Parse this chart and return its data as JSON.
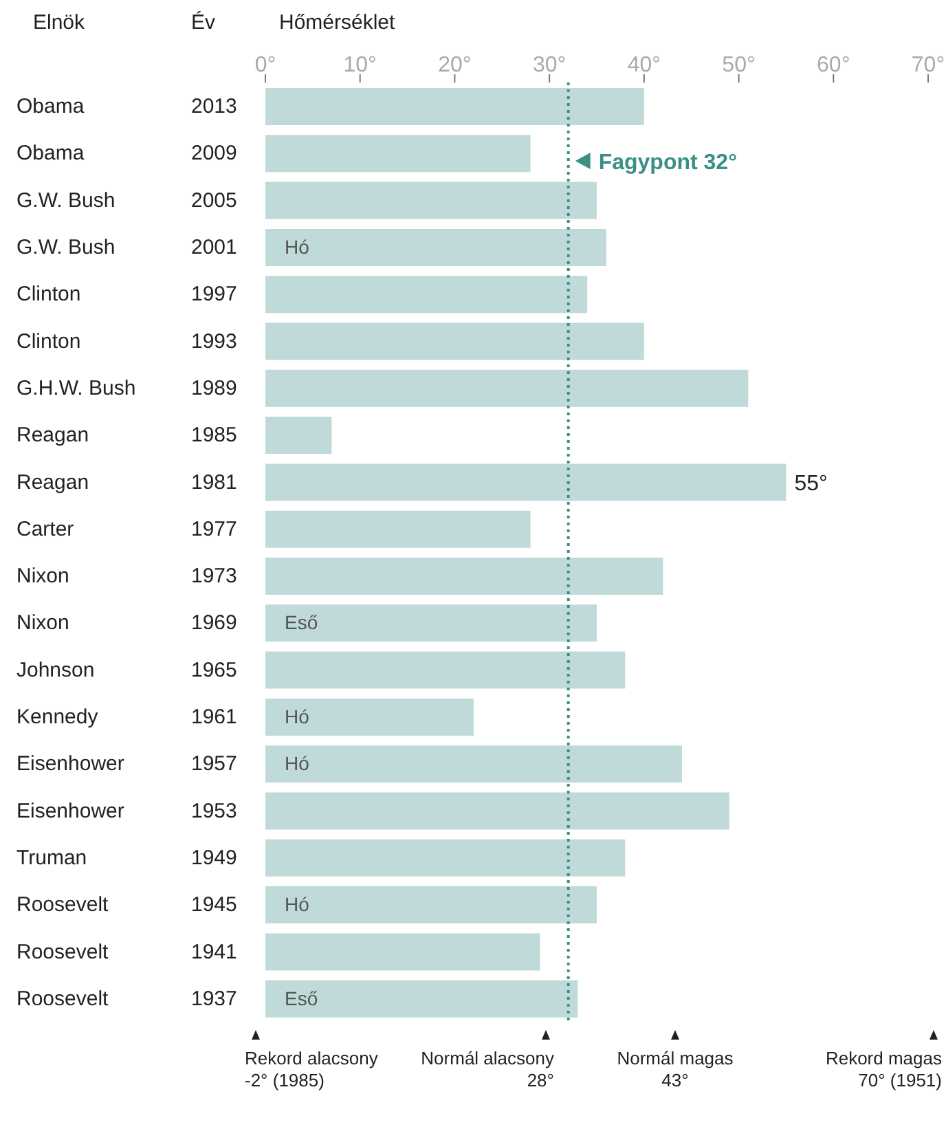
{
  "chart_data": {
    "type": "bar",
    "orientation": "horizontal",
    "xlabel": "Hőmérséklet",
    "ylabel": "Év",
    "y2_categories": [
      "Obama",
      "Obama",
      "G.W. Bush",
      "G.W. Bush",
      "Clinton",
      "Clinton",
      "G.H.W. Bush",
      "Reagan",
      "Reagan",
      "Carter",
      "Nixon",
      "Nixon",
      "Johnson",
      "Kennedy",
      "Eisenhower",
      "Eisenhower",
      "Truman",
      "Roosevelt",
      "Roosevelt",
      "Roosevelt"
    ],
    "categories": [
      "2013",
      "2009",
      "2005",
      "2001",
      "1997",
      "1993",
      "1989",
      "1985",
      "1981",
      "1977",
      "1973",
      "1969",
      "1965",
      "1961",
      "1957",
      "1953",
      "1949",
      "1945",
      "1941",
      "1937"
    ],
    "values": [
      40,
      28,
      35,
      36,
      34,
      40,
      51,
      7,
      55,
      28,
      42,
      35,
      38,
      22,
      44,
      49,
      38,
      35,
      29,
      33
    ],
    "value_labels": [
      null,
      null,
      null,
      null,
      null,
      null,
      null,
      null,
      "55°",
      null,
      null,
      null,
      null,
      null,
      null,
      null,
      null,
      null,
      null,
      null
    ],
    "color": "#bfdad9",
    "xlim": [
      0,
      70
    ],
    "xticks": [
      {
        "value": 0,
        "label": "0°"
      },
      {
        "value": 10,
        "label": "10°"
      },
      {
        "value": 20,
        "label": "20°"
      },
      {
        "value": 30,
        "label": "30°"
      },
      {
        "value": 40,
        "label": "40°"
      },
      {
        "value": 50,
        "label": "50°"
      },
      {
        "value": 60,
        "label": "60°"
      },
      {
        "value": 70,
        "label": "70°"
      }
    ],
    "grid": false,
    "legend": false,
    "ref_lines": [
      {
        "axis": "x",
        "value": 32,
        "label": "Fagypont 32°",
        "color": "#3a8f87",
        "line_style": "dotted"
      }
    ],
    "annotations": [
      {
        "text": "Hó",
        "y": "2001"
      },
      {
        "text": "Eső",
        "y": "1969"
      },
      {
        "text": "Hó",
        "y": "1961"
      },
      {
        "text": "Hó",
        "y": "1957"
      },
      {
        "text": "Hó",
        "y": "1945"
      },
      {
        "text": "Eső",
        "y": "1937"
      },
      "Elnök",
      "Rekord alacsony\n-2° (1985)",
      "Normál alacsony\n28°",
      "Normál magas\n43°",
      "Rekord magas\n70° (1951)"
    ]
  }
}
